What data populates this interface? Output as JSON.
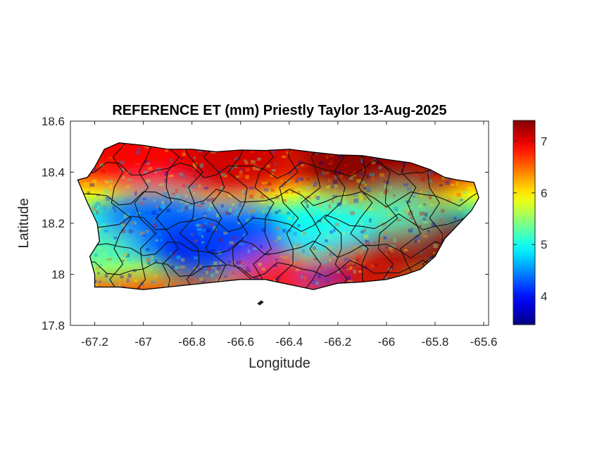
{
  "title": "REFERENCE ET (mm) Priestly Taylor 13-Aug-2025",
  "xlabel": "Longitude",
  "ylabel": "Latitude",
  "xlim": [
    -67.3,
    -65.58
  ],
  "ylim": [
    17.8,
    18.6
  ],
  "xticks": [
    {
      "value": -67.2,
      "label": "-67.2"
    },
    {
      "value": -67.0,
      "label": "-67"
    },
    {
      "value": -66.8,
      "label": "-66.8"
    },
    {
      "value": -66.6,
      "label": "-66.6"
    },
    {
      "value": -66.4,
      "label": "-66.4"
    },
    {
      "value": -66.2,
      "label": "-66.2"
    },
    {
      "value": -66.0,
      "label": "-66"
    },
    {
      "value": -65.8,
      "label": "-65.8"
    },
    {
      "value": -65.6,
      "label": "-65.6"
    }
  ],
  "yticks": [
    {
      "value": 17.8,
      "label": "17.8"
    },
    {
      "value": 18.0,
      "label": "18"
    },
    {
      "value": 18.2,
      "label": "18.2"
    },
    {
      "value": 18.4,
      "label": "18.4"
    },
    {
      "value": 18.6,
      "label": "18.6"
    }
  ],
  "colorbar": {
    "colormap": "jet",
    "range": [
      3.45,
      7.4
    ],
    "ticks": [
      {
        "value": 4,
        "label": "4"
      },
      {
        "value": 5,
        "label": "5"
      },
      {
        "value": 6,
        "label": "6"
      },
      {
        "value": 7,
        "label": "7"
      }
    ]
  },
  "map": {
    "region": "Puerto Rico",
    "boundaries": "municipalities",
    "pattern_description": "Highest ET (about 7 mm) along the north coast, the east and the south coast; lowest ET (about 4 mm) in the central-western mountains and a small pocket in the south-central area.",
    "coastline": [
      [
        -67.27,
        18.37
      ],
      [
        -67.23,
        18.38
      ],
      [
        -67.2,
        18.42
      ],
      [
        -67.16,
        18.49
      ],
      [
        -67.1,
        18.515
      ],
      [
        -67.0,
        18.505
      ],
      [
        -66.9,
        18.49
      ],
      [
        -66.8,
        18.49
      ],
      [
        -66.7,
        18.48
      ],
      [
        -66.6,
        18.487
      ],
      [
        -66.5,
        18.485
      ],
      [
        -66.4,
        18.49
      ],
      [
        -66.3,
        18.478
      ],
      [
        -66.2,
        18.468
      ],
      [
        -66.1,
        18.465
      ],
      [
        -66.0,
        18.45
      ],
      [
        -65.9,
        18.437
      ],
      [
        -65.82,
        18.41
      ],
      [
        -65.76,
        18.38
      ],
      [
        -65.71,
        18.37
      ],
      [
        -65.64,
        18.36
      ],
      [
        -65.62,
        18.3
      ],
      [
        -65.65,
        18.25
      ],
      [
        -65.7,
        18.2
      ],
      [
        -65.76,
        18.14
      ],
      [
        -65.8,
        18.07
      ],
      [
        -65.86,
        18.02
      ],
      [
        -65.92,
        18.0
      ],
      [
        -66.0,
        17.98
      ],
      [
        -66.1,
        17.97
      ],
      [
        -66.2,
        17.965
      ],
      [
        -66.3,
        17.94
      ],
      [
        -66.4,
        17.96
      ],
      [
        -66.5,
        17.98
      ],
      [
        -66.6,
        17.98
      ],
      [
        -66.7,
        17.97
      ],
      [
        -66.8,
        17.96
      ],
      [
        -66.9,
        17.95
      ],
      [
        -67.0,
        17.94
      ],
      [
        -67.1,
        17.95
      ],
      [
        -67.2,
        17.95
      ],
      [
        -67.2,
        18.0
      ],
      [
        -67.22,
        18.07
      ],
      [
        -67.18,
        18.13
      ],
      [
        -67.19,
        18.2
      ],
      [
        -67.23,
        18.28
      ],
      [
        -67.27,
        18.37
      ]
    ],
    "hotspots": [
      {
        "lon": -66.12,
        "lat": 18.43,
        "value": 7.4,
        "radius": 0.24
      },
      {
        "lon": -65.9,
        "lat": 18.38,
        "value": 7.3,
        "radius": 0.18
      },
      {
        "lon": -66.65,
        "lat": 18.45,
        "value": 7.1,
        "radius": 0.25
      },
      {
        "lon": -67.0,
        "lat": 18.48,
        "value": 6.9,
        "radius": 0.2
      },
      {
        "lon": -65.83,
        "lat": 18.12,
        "value": 7.3,
        "radius": 0.22
      },
      {
        "lon": -66.1,
        "lat": 18.01,
        "value": 7.1,
        "radius": 0.2
      },
      {
        "lon": -66.45,
        "lat": 18.0,
        "value": 6.9,
        "radius": 0.16
      },
      {
        "lon": -66.95,
        "lat": 18.2,
        "value": 4.3,
        "radius": 0.24
      },
      {
        "lon": -66.75,
        "lat": 18.1,
        "value": 3.9,
        "radius": 0.2
      },
      {
        "lon": -66.62,
        "lat": 18.15,
        "value": 4.2,
        "radius": 0.2
      },
      {
        "lon": -66.28,
        "lat": 17.99,
        "value": 4.0,
        "radius": 0.07
      },
      {
        "lon": -66.25,
        "lat": 18.2,
        "value": 5.0,
        "radius": 0.14
      },
      {
        "lon": -65.95,
        "lat": 18.25,
        "value": 5.2,
        "radius": 0.13
      },
      {
        "lon": -67.17,
        "lat": 18.1,
        "value": 5.3,
        "radius": 0.14
      }
    ]
  }
}
